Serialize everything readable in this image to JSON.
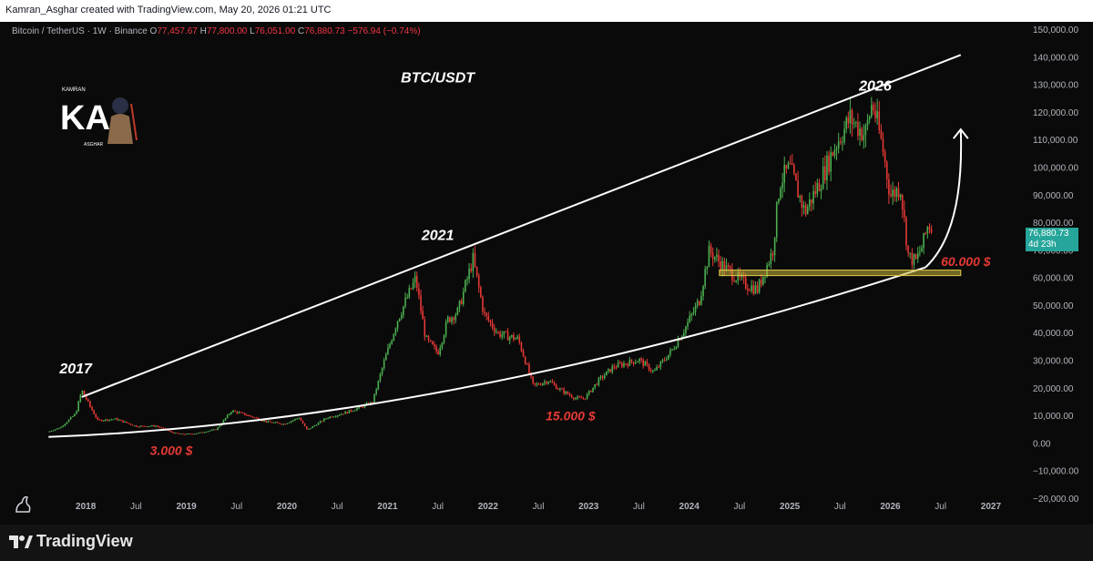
{
  "header": {
    "credit": "Kamran_Asghar created with TradingView.com, May 20, 2026 01:21 UTC"
  },
  "legend": {
    "symbol": "Bitcoin / TetherUS · 1W · Binance",
    "o_label": "O",
    "o": "77,457.67",
    "h_label": "H",
    "h": "77,800.00",
    "l_label": "L",
    "l": "76,051.00",
    "c_label": "C",
    "c": "76,880.73",
    "change": "−576.94 (−0.74%)"
  },
  "watermark": {
    "letters": "KA",
    "name": "KAMRAN",
    "sub": "ASGHAR"
  },
  "price_label": {
    "price": "76,880.73",
    "countdown": "4d 23h"
  },
  "footer": {
    "brand": "TradingView"
  },
  "colors": {
    "up": "#4caf50",
    "down": "#e53935",
    "line": "#ffffff",
    "zone": "#c8b43a"
  },
  "chart_data": {
    "type": "candlestick",
    "title": "BTC/USDT",
    "y_ticks": [
      -20000,
      -10000,
      0,
      10000,
      20000,
      30000,
      40000,
      50000,
      60000,
      70000,
      80000,
      90000,
      100000,
      110000,
      120000,
      130000,
      140000,
      150000
    ],
    "y_tick_labels": [
      "−20,000.00",
      "−10,000.00",
      "0.00",
      "10,000.00",
      "20,000.00",
      "30,000.00",
      "40,000.00",
      "50,000.00",
      "60,000.00",
      "70,000.00",
      "80,000.00",
      "90,000.00",
      "100,000.00",
      "110,000.00",
      "120,000.00",
      "130,000.00",
      "140,000.00",
      "150,000.00"
    ],
    "ylim": [
      -22000,
      153000
    ],
    "x_ticks": [
      {
        "label": "2018",
        "t": 2018.0
      },
      {
        "label": "Jul",
        "t": 2018.5
      },
      {
        "label": "2019",
        "t": 2019.0
      },
      {
        "label": "Jul",
        "t": 2019.5
      },
      {
        "label": "2020",
        "t": 2020.0
      },
      {
        "label": "Jul",
        "t": 2020.5
      },
      {
        "label": "2021",
        "t": 2021.0
      },
      {
        "label": "Jul",
        "t": 2021.5
      },
      {
        "label": "2022",
        "t": 2022.0
      },
      {
        "label": "Jul",
        "t": 2022.5
      },
      {
        "label": "2023",
        "t": 2023.0
      },
      {
        "label": "Jul",
        "t": 2023.5
      },
      {
        "label": "2024",
        "t": 2024.0
      },
      {
        "label": "Jul",
        "t": 2024.5
      },
      {
        "label": "2025",
        "t": 2025.0
      },
      {
        "label": "Jul",
        "t": 2025.5
      },
      {
        "label": "2026",
        "t": 2026.0
      },
      {
        "label": "Jul",
        "t": 2026.5
      },
      {
        "label": "2027",
        "t": 2027.0
      }
    ],
    "xlim": [
      2017.6,
      2027.2
    ],
    "price_path": [
      [
        2017.62,
        4300
      ],
      [
        2017.75,
        6000
      ],
      [
        2017.9,
        11000
      ],
      [
        2017.96,
        19500
      ],
      [
        2018.05,
        13000
      ],
      [
        2018.12,
        8500
      ],
      [
        2018.3,
        9000
      ],
      [
        2018.5,
        6400
      ],
      [
        2018.7,
        6500
      ],
      [
        2018.87,
        4000
      ],
      [
        2018.96,
        3500
      ],
      [
        2019.1,
        3800
      ],
      [
        2019.3,
        5300
      ],
      [
        2019.45,
        12000
      ],
      [
        2019.6,
        10500
      ],
      [
        2019.8,
        8000
      ],
      [
        2019.97,
        7200
      ],
      [
        2020.12,
        9500
      ],
      [
        2020.2,
        5000
      ],
      [
        2020.4,
        9500
      ],
      [
        2020.6,
        11500
      ],
      [
        2020.85,
        15000
      ],
      [
        2020.96,
        29000
      ],
      [
        2021.1,
        45000
      ],
      [
        2021.28,
        60000
      ],
      [
        2021.38,
        38000
      ],
      [
        2021.5,
        33000
      ],
      [
        2021.6,
        45000
      ],
      [
        2021.7,
        48000
      ],
      [
        2021.85,
        67000
      ],
      [
        2021.96,
        47000
      ],
      [
        2022.1,
        40000
      ],
      [
        2022.3,
        38000
      ],
      [
        2022.45,
        21000
      ],
      [
        2022.6,
        23000
      ],
      [
        2022.7,
        20000
      ],
      [
        2022.87,
        16500
      ],
      [
        2022.96,
        16500
      ],
      [
        2023.1,
        23000
      ],
      [
        2023.25,
        28000
      ],
      [
        2023.5,
        30500
      ],
      [
        2023.65,
        26000
      ],
      [
        2023.83,
        34000
      ],
      [
        2023.96,
        42000
      ],
      [
        2024.1,
        52000
      ],
      [
        2024.2,
        70000
      ],
      [
        2024.35,
        64000
      ],
      [
        2024.55,
        58000
      ],
      [
        2024.68,
        56000
      ],
      [
        2024.83,
        70000
      ],
      [
        2024.9,
        95000
      ],
      [
        2025.0,
        100000
      ],
      [
        2025.15,
        84000
      ],
      [
        2025.3,
        95000
      ],
      [
        2025.45,
        108000
      ],
      [
        2025.6,
        118000
      ],
      [
        2025.75,
        112000
      ],
      [
        2025.82,
        124000
      ],
      [
        2025.92,
        108000
      ],
      [
        2026.0,
        90000
      ],
      [
        2026.1,
        93000
      ],
      [
        2026.18,
        68000
      ],
      [
        2026.25,
        66000
      ],
      [
        2026.32,
        72000
      ],
      [
        2026.38,
        80000
      ],
      [
        2026.42,
        77000
      ]
    ],
    "trendlines": [
      {
        "name": "upper-resistance",
        "from": [
          2017.96,
          17000
        ],
        "to": [
          2026.7,
          141000
        ]
      },
      {
        "name": "base-floor-curve",
        "from": [
          2017.63,
          2500
        ],
        "via": [
          2021.6,
          8000
        ],
        "to": [
          2026.35,
          64000
        ]
      },
      {
        "name": "parabolic-arc",
        "from": [
          2026.35,
          64000
        ],
        "to": [
          2026.7,
          114000
        ]
      }
    ],
    "zone": {
      "x0": 2024.3,
      "x1": 2026.7,
      "y0": 61000,
      "y1": 63000
    },
    "annotations": [
      {
        "text": "BTC/USDT",
        "t": 2021.5,
        "y": 131000,
        "style": "big"
      },
      {
        "text": "2017",
        "t": 2017.9,
        "y": 25500,
        "style": "big"
      },
      {
        "text": "2021",
        "t": 2021.5,
        "y": 74000,
        "style": "big"
      },
      {
        "text": "2026",
        "t": 2025.85,
        "y": 128000,
        "style": "big"
      },
      {
        "text": "3.000 $",
        "t": 2018.85,
        "y": -4000,
        "style": "red"
      },
      {
        "text": "15.000 $",
        "t": 2022.82,
        "y": 8500,
        "style": "red"
      },
      {
        "text": "60.000 $",
        "t": 2026.75,
        "y": 64500,
        "style": "red"
      }
    ]
  }
}
